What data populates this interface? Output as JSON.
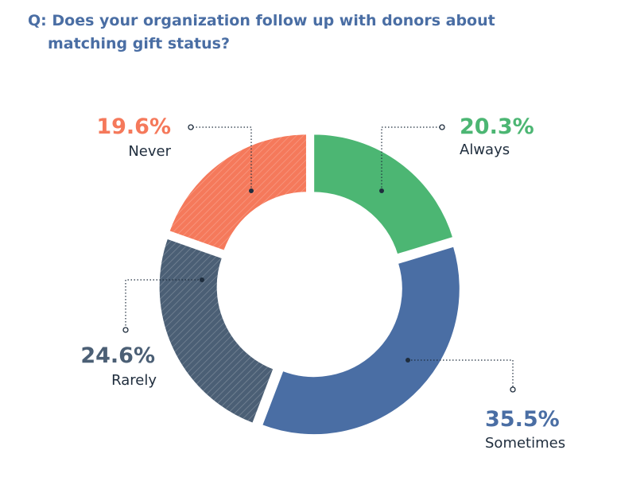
{
  "chart_data": {
    "type": "donut",
    "title": "Q: Does your organization follow up with donors about matching gift status?",
    "categories": [
      "Always",
      "Sometimes",
      "Rarely",
      "Never"
    ],
    "values": [
      20.3,
      35.5,
      24.6,
      19.6
    ],
    "value_labels": [
      "20.3%",
      "35.5%",
      "24.6%",
      "19.6%"
    ],
    "colors": [
      "#4cb673",
      "#4a6ea4",
      "#4b5f75",
      "#f5795b"
    ]
  }
}
